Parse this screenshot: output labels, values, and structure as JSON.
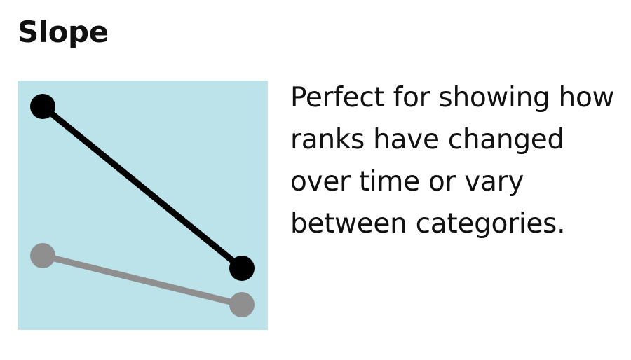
{
  "card": {
    "title": "Slope",
    "description": "Perfect for showing how ranks have changed over time or vary between categories."
  },
  "icon": {
    "name": "slope-chart-icon",
    "background_color": "#bde3ea",
    "lines": [
      {
        "name": "highlighted",
        "color": "#000000",
        "start_rank": 1,
        "end_rank": 2
      },
      {
        "name": "muted",
        "color": "#8f8f8f",
        "start_rank": 3,
        "end_rank": 4
      }
    ]
  }
}
